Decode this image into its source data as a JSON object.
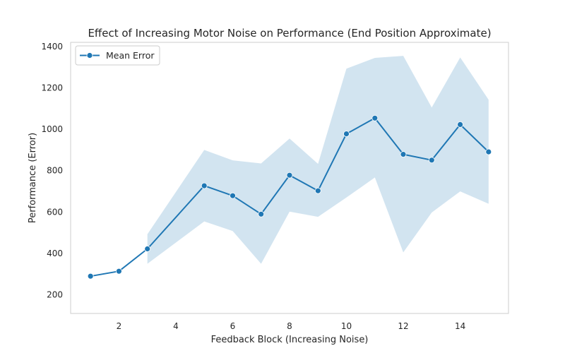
{
  "chart_data": {
    "type": "line",
    "title": "Effect of Increasing Motor Noise on Performance (End Position Approximate)",
    "xlabel": "Feedback Block (Increasing Noise)",
    "ylabel": "Performance (Error)",
    "xlim": [
      0.3,
      15.7
    ],
    "ylim": [
      110,
      1420
    ],
    "xticks": [
      2,
      4,
      6,
      8,
      10,
      12,
      14
    ],
    "yticks": [
      200,
      400,
      600,
      800,
      1000,
      1200,
      1400
    ],
    "grid": false,
    "legend": {
      "position": "top-left",
      "entries": [
        "Mean Error"
      ]
    },
    "series": [
      {
        "name": "Mean Error",
        "color": "#1f77b4",
        "marker": "circle",
        "x": [
          1,
          2,
          3,
          5,
          6,
          7,
          8,
          9,
          10,
          11,
          12,
          13,
          14,
          15
        ],
        "y": [
          290,
          314,
          422,
          727,
          679,
          590,
          778,
          703,
          978,
          1054,
          879,
          851,
          1023,
          891
        ]
      }
    ],
    "band": {
      "color": "#1f77b4",
      "opacity": 0.2,
      "x": [
        3,
        5,
        6,
        7,
        8,
        9,
        10,
        11,
        12,
        13,
        14,
        15
      ],
      "lower": [
        350,
        555,
        508,
        350,
        602,
        577,
        670,
        767,
        405,
        598,
        700,
        640
      ],
      "upper": [
        493,
        900,
        850,
        835,
        955,
        833,
        1293,
        1345,
        1355,
        1105,
        1347,
        1143
      ]
    }
  }
}
